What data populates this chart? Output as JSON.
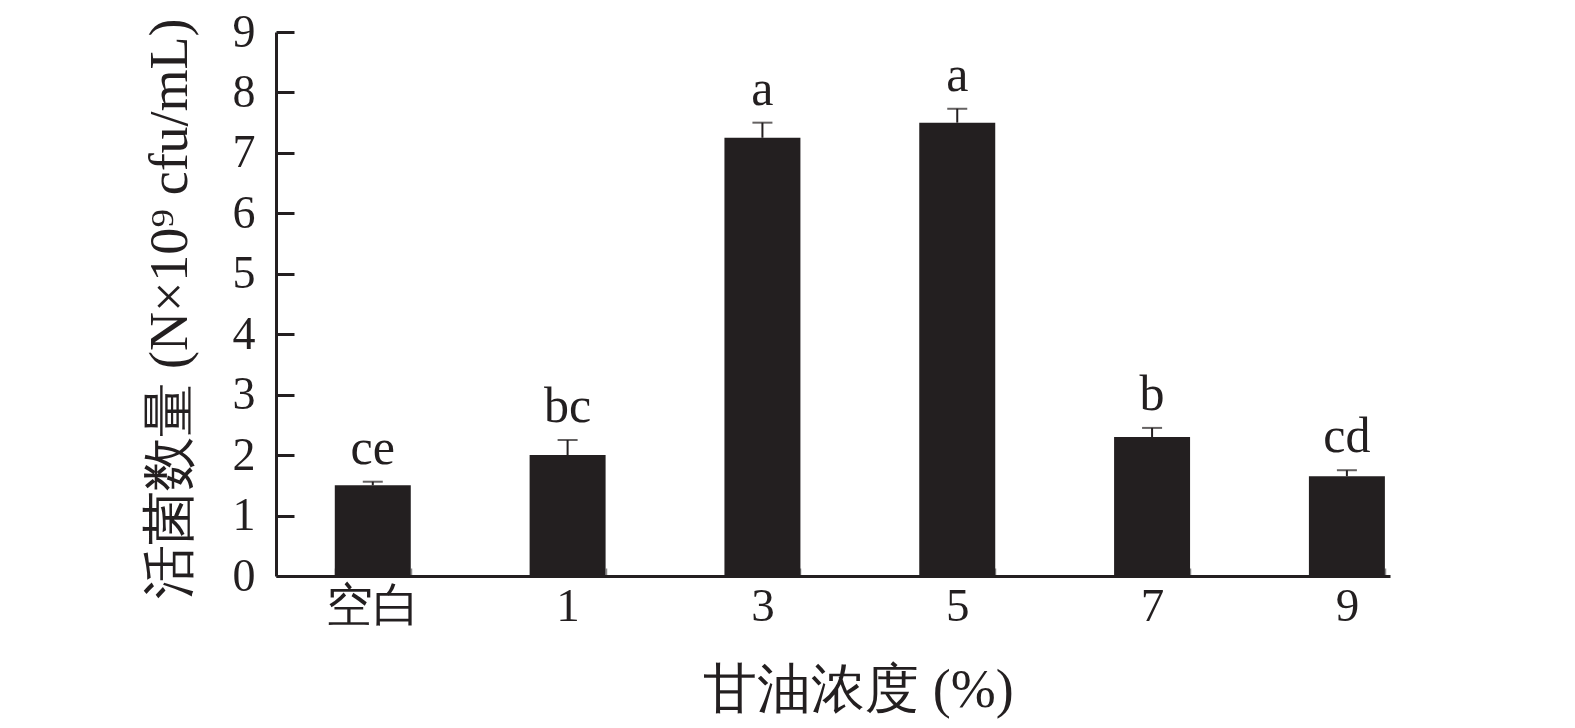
{
  "chart_data": {
    "type": "bar",
    "xlabel": "甘油浓度 (%)",
    "ylabel": "活菌数量 (N×10⁹ cfu/mL)",
    "categories": [
      "空白",
      "1",
      "3",
      "5",
      "7",
      "9"
    ],
    "values": [
      1.5,
      2.0,
      7.25,
      7.5,
      2.3,
      1.65
    ],
    "errors": [
      [
        1.5,
        1.56
      ],
      [
        2.0,
        2.25
      ],
      [
        7.25,
        7.5
      ],
      [
        7.5,
        7.73
      ],
      [
        2.3,
        2.45
      ],
      [
        1.65,
        1.75
      ]
    ],
    "color": "#231f20",
    "ylim": [
      0,
      9
    ],
    "yticks": [
      0,
      1,
      2,
      3,
      4,
      5,
      6,
      7,
      8,
      9
    ],
    "annotations": [
      {
        "text": "ce",
        "x": "空白",
        "y": 1.56
      },
      {
        "text": "bc",
        "x": "1",
        "y": 2.25
      },
      {
        "text": "a",
        "x": "3",
        "y": 7.5
      },
      {
        "text": "a",
        "x": "5",
        "y": 7.73
      },
      {
        "text": "b",
        "x": "7",
        "y": 2.45
      },
      {
        "text": "cd",
        "x": "9",
        "y": 1.75
      }
    ]
  }
}
